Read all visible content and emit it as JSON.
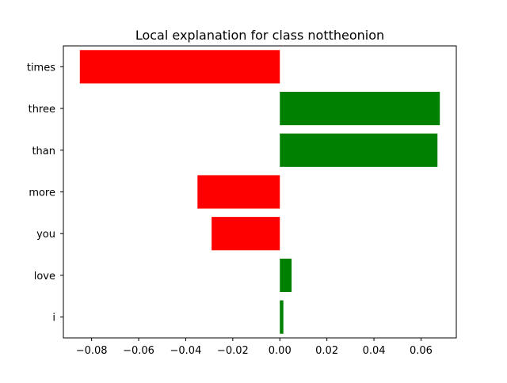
{
  "chart_data": {
    "type": "bar",
    "orientation": "horizontal",
    "title": "Local explanation for class nottheonion",
    "xlabel": "",
    "ylabel": "",
    "categories": [
      "times",
      "three",
      "than",
      "more",
      "you",
      "love",
      "i"
    ],
    "values": [
      -0.085,
      0.068,
      0.067,
      -0.035,
      -0.029,
      0.005,
      0.0015
    ],
    "xlim": [
      -0.092,
      0.075
    ],
    "xticks": [
      -0.08,
      -0.06,
      -0.04,
      -0.02,
      0.0,
      0.02,
      0.04,
      0.06
    ],
    "xtick_labels": [
      "−0.08",
      "−0.06",
      "−0.04",
      "−0.02",
      "0.00",
      "0.02",
      "0.04",
      "0.06"
    ],
    "grid": false,
    "legend": "none",
    "colors": {
      "positive": "#008000",
      "negative": "#ff0000",
      "axis": "#000000"
    }
  }
}
